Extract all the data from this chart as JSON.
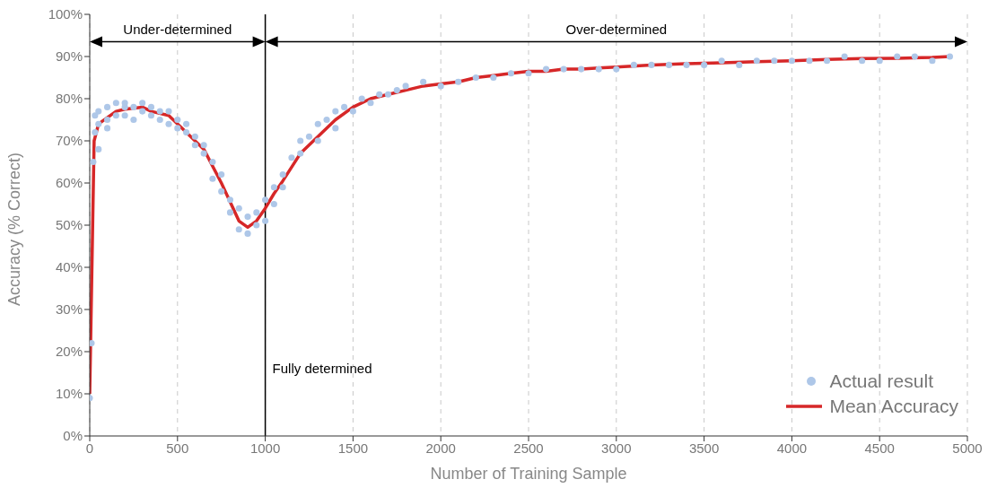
{
  "chart_data": {
    "type": "line",
    "xlabel": "Number of Training Sample",
    "ylabel": "Accuracy (% Correct)",
    "xlim": [
      0,
      5000
    ],
    "xticks": [
      0,
      500,
      1000,
      1500,
      2000,
      2500,
      3000,
      3500,
      4000,
      4500,
      5000
    ],
    "ylim": [
      0,
      100
    ],
    "yticks": [
      {
        "value": 0,
        "label": "0%"
      },
      {
        "value": 10,
        "label": "10%"
      },
      {
        "value": 20,
        "label": "20%"
      },
      {
        "value": 30,
        "label": "30%"
      },
      {
        "value": 40,
        "label": "40%"
      },
      {
        "value": 50,
        "label": "50%"
      },
      {
        "value": 60,
        "label": "60%"
      },
      {
        "value": 70,
        "label": "70%"
      },
      {
        "value": 80,
        "label": "80%"
      },
      {
        "value": 90,
        "label": "90%"
      },
      {
        "value": 100,
        "label": "100%"
      }
    ],
    "grid": "x",
    "legend": "bottom right",
    "series": [
      {
        "name": "Actual result",
        "type": "scatter",
        "marker": "circle",
        "color": "#aec7e8",
        "x": [
          0,
          10,
          20,
          30,
          30,
          50,
          50,
          50,
          100,
          100,
          100,
          150,
          150,
          200,
          200,
          200,
          250,
          250,
          300,
          300,
          350,
          350,
          400,
          400,
          450,
          450,
          500,
          500,
          550,
          550,
          600,
          600,
          650,
          650,
          700,
          700,
          750,
          750,
          800,
          800,
          850,
          850,
          900,
          900,
          950,
          950,
          1000,
          1000,
          1050,
          1050,
          1100,
          1100,
          1150,
          1200,
          1200,
          1250,
          1300,
          1300,
          1350,
          1400,
          1400,
          1450,
          1500,
          1550,
          1600,
          1650,
          1700,
          1750,
          1800,
          1900,
          2000,
          2100,
          2200,
          2300,
          2400,
          2500,
          2600,
          2700,
          2800,
          2900,
          3000,
          3100,
          3200,
          3300,
          3400,
          3500,
          3600,
          3700,
          3800,
          3900,
          4000,
          4100,
          4200,
          4300,
          4400,
          4500,
          4600,
          4700,
          4800,
          4900
        ],
        "values": [
          9,
          22,
          65,
          72,
          76,
          68,
          74,
          77,
          73,
          78,
          75,
          76,
          79,
          78,
          76,
          79,
          75,
          78,
          77,
          79,
          76,
          78,
          75,
          77,
          74,
          77,
          73,
          75,
          72,
          74,
          69,
          71,
          67,
          69,
          61,
          65,
          58,
          62,
          53,
          56,
          49,
          54,
          48,
          52,
          50,
          53,
          51,
          56,
          55,
          59,
          59,
          62,
          66,
          67,
          70,
          71,
          70,
          74,
          75,
          73,
          77,
          78,
          77,
          80,
          79,
          81,
          81,
          82,
          83,
          84,
          83,
          84,
          85,
          85,
          86,
          86,
          87,
          87,
          87,
          87,
          87,
          88,
          88,
          88,
          88,
          88,
          89,
          88,
          89,
          89,
          89,
          89,
          89,
          90,
          89,
          89,
          90,
          90,
          89,
          90
        ]
      },
      {
        "name": "Mean Accuracy",
        "marker": "none",
        "line_style": "solid",
        "color": "#d62728",
        "x": [
          0,
          25,
          50,
          150,
          200,
          300,
          350,
          450,
          550,
          600,
          650,
          750,
          850,
          900,
          950,
          1000,
          1050,
          1100,
          1200,
          1300,
          1400,
          1500,
          1600,
          1700,
          1800,
          1900,
          2000,
          2100,
          2200,
          2300,
          2400,
          2500,
          2600,
          2700,
          2800,
          2900,
          3000,
          3200,
          3400,
          3600,
          3800,
          4000,
          4200,
          4400,
          4600,
          4800,
          4900
        ],
        "values": [
          10,
          70,
          74,
          77,
          77.5,
          78,
          77,
          76,
          72,
          70,
          68,
          60,
          51,
          49.5,
          51,
          54,
          57.5,
          60.5,
          67,
          71,
          75,
          78,
          80,
          81,
          82,
          83,
          83.5,
          84,
          85,
          85.5,
          86,
          86.5,
          86.5,
          87,
          87,
          87.3,
          87.5,
          88,
          88.3,
          88.5,
          88.8,
          89,
          89.3,
          89.5,
          89.6,
          89.8,
          90
        ]
      }
    ],
    "ref_lines": [
      {
        "axis": "x",
        "value": 1000,
        "label": "Fully determined",
        "color": "#000000"
      }
    ],
    "annotations": [
      "Under-determined",
      "Over-determined"
    ]
  }
}
